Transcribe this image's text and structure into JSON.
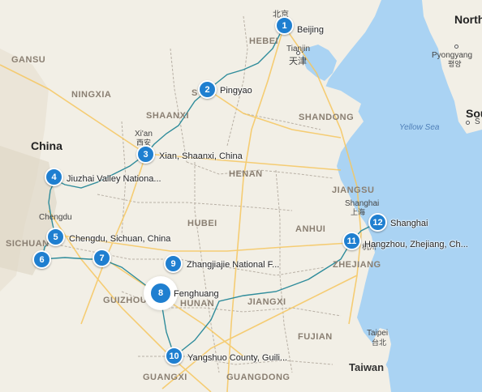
{
  "map": {
    "colors": {
      "land": "#f2efe6",
      "water": "#aad3f3",
      "route": "#2f8c9b",
      "highway": "#f6c760",
      "border": "#b8b0a5",
      "marker": "#1f7fd0"
    },
    "countries": {
      "china": "China",
      "taiwan": "Taiwan",
      "north_partial": "North",
      "south_partial": "Sou"
    },
    "sea": "Yellow Sea",
    "provinces": [
      "GANSU",
      "NINGXIA",
      "HEBEI",
      "SHANXI",
      "SHAANXI",
      "SHANDONG",
      "HENAN",
      "JIANGSU",
      "HUBEI",
      "ANHUI",
      "SICHUAN",
      "GUIZHOU",
      "HUNAN",
      "JIANGXI",
      "ZHEJIANG",
      "FUJIAN",
      "GUANGXI",
      "GUANGDONG"
    ],
    "cities": {
      "beijing_cn": "北京",
      "tianjin": "Tianjin",
      "tianjin_cn": "天津",
      "xian": "Xi'an",
      "xian_cn": "西安",
      "chengdu": "Chengdu",
      "shanghai": "Shanghai",
      "shanghai_cn": "上海",
      "hangzhou_cn": "杭州",
      "taipei": "Taipei",
      "taipei_cn": "台北",
      "pyongyang": "Pyongyang",
      "pyongyang_kr": "평양",
      "seoul_partial": "S"
    },
    "stops": [
      {
        "number": "1",
        "label": "Beijing"
      },
      {
        "number": "2",
        "label": "Pingyao"
      },
      {
        "number": "3",
        "label": "Xian, Shaanxi, China"
      },
      {
        "number": "4",
        "label": "Jiuzhai Valley Nationa..."
      },
      {
        "number": "5",
        "label": "Chengdu, Sichuan, China"
      },
      {
        "number": "6",
        "label": ""
      },
      {
        "number": "7",
        "label": ""
      },
      {
        "number": "8",
        "label": "Fenghuang"
      },
      {
        "number": "9",
        "label": "Zhangjiajie National F..."
      },
      {
        "number": "10",
        "label": "Yangshuo County, Guili..."
      },
      {
        "number": "11",
        "label": "Hangzhou, Zhejiang, Ch..."
      },
      {
        "number": "12",
        "label": "Shanghai"
      }
    ]
  }
}
